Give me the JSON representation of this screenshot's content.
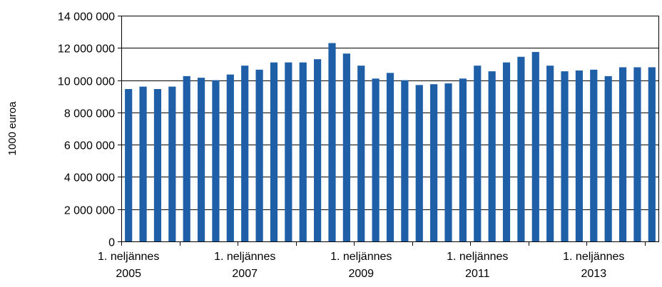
{
  "chart_data": {
    "type": "bar",
    "title": "",
    "xlabel": "",
    "ylabel": "1000 euroa",
    "ylim": [
      0,
      14000000
    ],
    "y_ticks": [
      0,
      2000000,
      4000000,
      6000000,
      8000000,
      10000000,
      12000000,
      14000000
    ],
    "y_tick_labels": [
      "0",
      "2 000 000",
      "4 000 000",
      "6 000 000",
      "8 000 000",
      "10 000 000",
      "12 000 000",
      "14 000 000"
    ],
    "grid": true,
    "bar_color": "#1f5fa8",
    "x_tick_labels": [
      {
        "line1": "1. neljännes",
        "line2": "2005",
        "index": 0
      },
      {
        "line1": "1. neljännes",
        "line2": "2007",
        "index": 8
      },
      {
        "line1": "1. neljännes",
        "line2": "2009",
        "index": 16
      },
      {
        "line1": "1. neljännes",
        "line2": "2011",
        "index": 24
      },
      {
        "line1": "1. neljännes",
        "line2": "2013",
        "index": 32
      }
    ],
    "categories": [
      "2005 Q1",
      "2005 Q2",
      "2005 Q3",
      "2005 Q4",
      "2006 Q1",
      "2006 Q2",
      "2006 Q3",
      "2006 Q4",
      "2007 Q1",
      "2007 Q2",
      "2007 Q3",
      "2007 Q4",
      "2008 Q1",
      "2008 Q2",
      "2008 Q3",
      "2008 Q4",
      "2009 Q1",
      "2009 Q2",
      "2009 Q3",
      "2009 Q4",
      "2010 Q1",
      "2010 Q2",
      "2010 Q3",
      "2010 Q4",
      "2011 Q1",
      "2011 Q2",
      "2011 Q3",
      "2011 Q4",
      "2012 Q1",
      "2012 Q2",
      "2012 Q3",
      "2012 Q4",
      "2013 Q1",
      "2013 Q2",
      "2013 Q3",
      "2013 Q4",
      "2014 Q1"
    ],
    "values": [
      9450000,
      9600000,
      9450000,
      9600000,
      10250000,
      10150000,
      10000000,
      10350000,
      10900000,
      10650000,
      11100000,
      11100000,
      11100000,
      11300000,
      12300000,
      11650000,
      10900000,
      10100000,
      10450000,
      10000000,
      9700000,
      9750000,
      9800000,
      10100000,
      10900000,
      10550000,
      11100000,
      11450000,
      11750000,
      10900000,
      10550000,
      10600000,
      10650000,
      10250000,
      10800000,
      10800000,
      10800000
    ]
  }
}
